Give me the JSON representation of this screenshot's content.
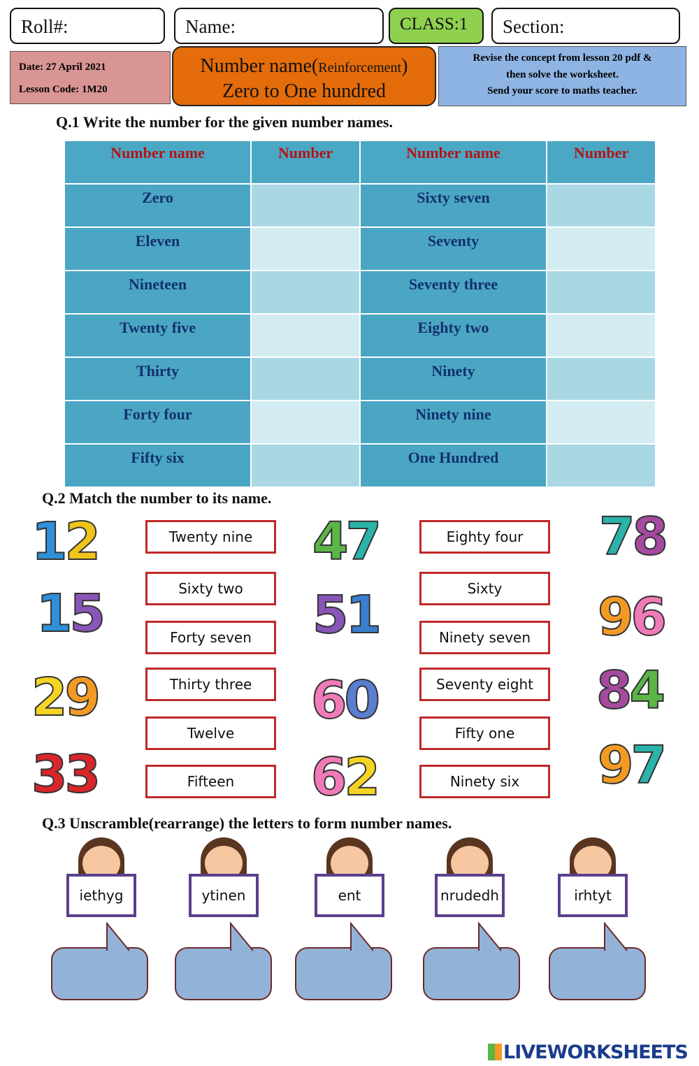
{
  "header": {
    "roll": "Roll#:",
    "name": "Name:",
    "class": "CLASS:1",
    "section": "Section:"
  },
  "info": {
    "date": "Date: 27 April 2021",
    "lesson_code": "Lesson Code: 1M20",
    "title_main": "Number name(",
    "title_small": "Reinforcement",
    "title_close": ")",
    "title_line2": "Zero to One hundred",
    "instructions": [
      "Revise the concept from lesson 20 pdf &",
      "then solve the worksheet.",
      "Send your score to maths teacher."
    ]
  },
  "q1": {
    "title": "Q.1   Write the number for the given number names.",
    "headers": [
      "Number name",
      "Number",
      "Number name",
      "Number"
    ],
    "rows": [
      [
        "Zero",
        "Sixty seven"
      ],
      [
        "Eleven",
        "Seventy"
      ],
      [
        "Nineteen",
        "Seventy three"
      ],
      [
        "Twenty five",
        "Eighty two"
      ],
      [
        "Thirty",
        "Ninety"
      ],
      [
        "Forty four",
        "Ninety nine"
      ],
      [
        "Fifty six",
        "One Hundred"
      ]
    ]
  },
  "q2": {
    "title": "Q.2     Match the number to its name.",
    "numbers": [
      {
        "value": "12",
        "colors": [
          "#2f8fd8",
          "#f0c419"
        ]
      },
      {
        "value": "15",
        "colors": [
          "#2f8fd8",
          "#8a55b8"
        ]
      },
      {
        "value": "29",
        "colors": [
          "#f5d423",
          "#f39a25"
        ]
      },
      {
        "value": "33",
        "colors": [
          "#d8262a",
          "#d8262a"
        ]
      },
      {
        "value": "47",
        "colors": [
          "#5bb547",
          "#2ab3a8"
        ]
      },
      {
        "value": "51",
        "colors": [
          "#8a55b8",
          "#3a7fd0"
        ]
      },
      {
        "value": "60",
        "colors": [
          "#f07bb8",
          "#5a7fd0"
        ]
      },
      {
        "value": "62",
        "colors": [
          "#f07bb8",
          "#f5d423"
        ]
      },
      {
        "value": "78",
        "colors": [
          "#2ab3a8",
          "#a64aa0"
        ]
      },
      {
        "value": "96",
        "colors": [
          "#f39a25",
          "#f07bb8"
        ]
      },
      {
        "value": "84",
        "colors": [
          "#a64aa0",
          "#5bb547"
        ]
      },
      {
        "value": "97",
        "colors": [
          "#f39a25",
          "#2ab3a8"
        ]
      }
    ],
    "labels_left": [
      "Twenty nine",
      "Sixty two",
      "Forty seven",
      "Thirty three",
      "Twelve",
      "Fifteen"
    ],
    "labels_right": [
      "Eighty four",
      "Sixty",
      "Ninety seven",
      "Seventy eight",
      "Fifty one",
      "Ninety six"
    ]
  },
  "q3": {
    "title": "Q.3   Unscramble(rearrange) the letters to form number names.",
    "words": [
      "iethyg",
      "ytinen",
      "ent",
      "nrudedh",
      "irhtyt"
    ]
  },
  "footer": {
    "logo": "LIVEWORKSHEETS"
  }
}
